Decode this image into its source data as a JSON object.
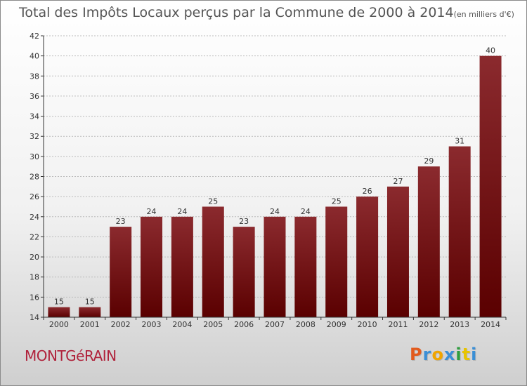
{
  "header": {
    "title": "Total des Impôts Locaux perçus par la Commune de 2000 à 2014",
    "unit": "(en milliers d'€)"
  },
  "commune_name": "MONTGéRAIN",
  "logo": {
    "letters": [
      "P",
      "r",
      "o",
      "x",
      "i",
      "t",
      "i"
    ],
    "colors": [
      "#e25b1e",
      "#3a8fd6",
      "#f0a500",
      "#3a8fd6",
      "#2e9e3e",
      "#e8c400",
      "#3a8fd6"
    ]
  },
  "colors": {
    "bar_top": "#8b2a2e",
    "bar_bottom": "#5a0000",
    "grid": "#bbbbbb",
    "axis": "#333333"
  },
  "chart_data": {
    "type": "bar",
    "title": "Total des Impôts Locaux perçus par la Commune de 2000 à 2014",
    "ylabel": "en milliers d'€",
    "xlabel": "",
    "categories": [
      "2000",
      "2001",
      "2002",
      "2003",
      "2004",
      "2005",
      "2006",
      "2007",
      "2008",
      "2009",
      "2010",
      "2011",
      "2012",
      "2013",
      "2014"
    ],
    "values": [
      15,
      15,
      23,
      24,
      24,
      25,
      23,
      24,
      24,
      25,
      26,
      27,
      29,
      31,
      40
    ],
    "ylim": [
      14,
      42
    ],
    "yticks": [
      14,
      16,
      18,
      20,
      22,
      24,
      26,
      28,
      30,
      32,
      34,
      36,
      38,
      40,
      42
    ],
    "grid": true
  }
}
